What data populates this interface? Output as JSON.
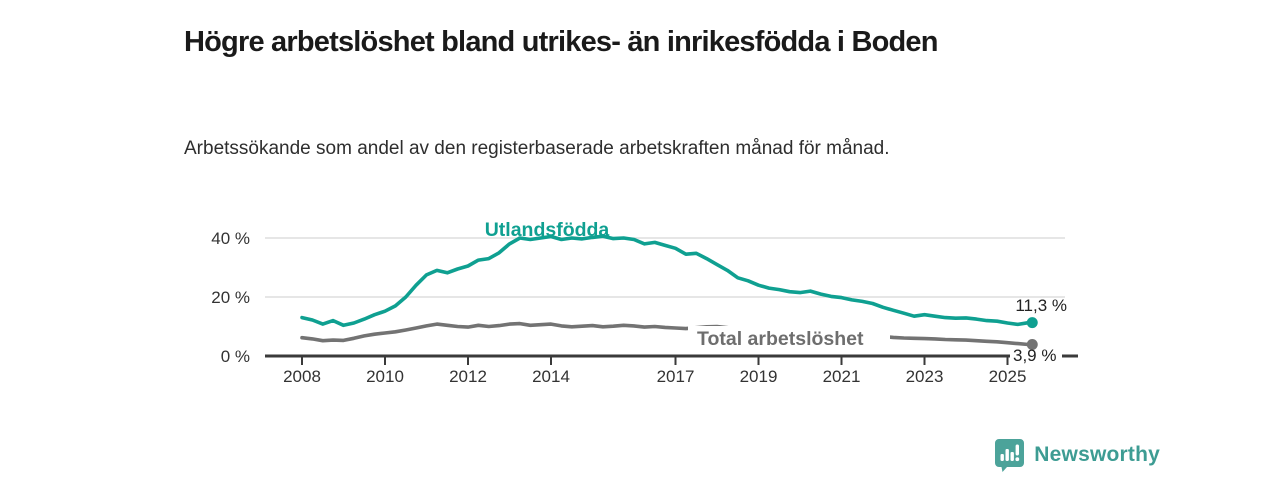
{
  "header": {
    "title": "Högre arbetslöshet bland utrikes- än inrikesfödda i Boden",
    "subtitle": "Arbetssökande som andel av den registerbaserade arbetskraften månad för månad."
  },
  "chart_data": {
    "type": "line",
    "unit": "%",
    "grid": "horizontal-only",
    "ylim": [
      0,
      44
    ],
    "xlim": [
      2007.2,
      2026.2
    ],
    "yticks": [
      {
        "value": 0,
        "label": "0 %"
      },
      {
        "value": 20,
        "label": "20 %"
      },
      {
        "value": 40,
        "label": "40 %"
      }
    ],
    "xticks": [
      {
        "value": 2008,
        "label": "2008"
      },
      {
        "value": 2010,
        "label": "2010"
      },
      {
        "value": 2012,
        "label": "2012"
      },
      {
        "value": 2014,
        "label": "2014"
      },
      {
        "value": 2017,
        "label": "2017"
      },
      {
        "value": 2019,
        "label": "2019"
      },
      {
        "value": 2021,
        "label": "2021"
      },
      {
        "value": 2023,
        "label": "2023"
      },
      {
        "value": 2025,
        "label": "2025"
      }
    ],
    "x": [
      2008.0,
      2008.25,
      2008.5,
      2008.75,
      2009.0,
      2009.25,
      2009.5,
      2009.75,
      2010.0,
      2010.25,
      2010.5,
      2010.75,
      2011.0,
      2011.25,
      2011.5,
      2011.75,
      2012.0,
      2012.25,
      2012.5,
      2012.75,
      2013.0,
      2013.25,
      2013.5,
      2013.75,
      2014.0,
      2014.25,
      2014.5,
      2014.75,
      2015.0,
      2015.25,
      2015.5,
      2015.75,
      2016.0,
      2016.25,
      2016.5,
      2016.75,
      2017.0,
      2017.25,
      2017.5,
      2017.75,
      2018.0,
      2018.25,
      2018.5,
      2018.75,
      2019.0,
      2019.25,
      2019.5,
      2019.75,
      2020.0,
      2020.25,
      2020.5,
      2020.75,
      2021.0,
      2021.25,
      2021.5,
      2021.75,
      2022.0,
      2022.25,
      2022.5,
      2022.75,
      2023.0,
      2023.25,
      2023.5,
      2023.75,
      2024.0,
      2024.25,
      2024.5,
      2024.75,
      2025.0,
      2025.25,
      2025.5
    ],
    "series": [
      {
        "name": "Utlandsfödda",
        "slug": "utlandsfodda",
        "color": "#0FA091",
        "end_label": "11,3 %",
        "end_value": 11.3,
        "values": [
          13.0,
          12.2,
          10.8,
          12.0,
          10.4,
          11.2,
          12.5,
          14.0,
          15.2,
          17.0,
          20.0,
          24.0,
          27.5,
          29.0,
          28.2,
          29.5,
          30.5,
          32.5,
          33.0,
          35.0,
          38.0,
          40.0,
          39.5,
          40.0,
          40.5,
          39.5,
          40.0,
          39.7,
          40.2,
          40.6,
          39.8,
          40.0,
          39.5,
          38.0,
          38.5,
          37.5,
          36.5,
          34.5,
          34.8,
          33.0,
          31.0,
          29.0,
          26.5,
          25.5,
          24.0,
          23.0,
          22.5,
          21.8,
          21.5,
          22.0,
          21.0,
          20.2,
          19.8,
          19.0,
          18.5,
          17.8,
          16.5,
          15.5,
          14.5,
          13.5,
          14.0,
          13.5,
          13.0,
          12.8,
          12.9,
          12.5,
          12.0,
          11.8,
          11.2,
          10.7,
          11.3
        ]
      },
      {
        "name": "Total arbetslöshet",
        "slug": "total-arbetsloshet",
        "color": "#737373",
        "label_color": "#6E6E6E",
        "end_label": "3,9 %",
        "end_value": 3.9,
        "values": [
          6.2,
          5.8,
          5.2,
          5.4,
          5.3,
          6.0,
          6.8,
          7.4,
          7.8,
          8.2,
          8.8,
          9.5,
          10.2,
          10.8,
          10.4,
          10.0,
          9.8,
          10.4,
          10.0,
          10.3,
          10.8,
          11.0,
          10.4,
          10.6,
          10.8,
          10.2,
          9.9,
          10.1,
          10.3,
          9.9,
          10.1,
          10.4,
          10.2,
          9.8,
          10.0,
          9.7,
          9.5,
          9.3,
          9.6,
          9.9,
          10.0,
          9.6,
          9.2,
          9.0,
          9.2,
          8.9,
          8.7,
          8.5,
          8.6,
          8.8,
          8.5,
          8.2,
          7.9,
          7.6,
          7.2,
          6.9,
          6.6,
          6.3,
          6.1,
          6.0,
          5.9,
          5.8,
          5.6,
          5.5,
          5.4,
          5.2,
          5.0,
          4.8,
          4.5,
          4.2,
          3.9
        ]
      }
    ],
    "colors": {
      "grid": "#D8D8D8",
      "axis": "#3A3A3A",
      "tick_label": "#333333",
      "annotation_text": "#222222"
    }
  },
  "footer": {
    "brand_name": "Newsworthy",
    "logo_icon": "bar-chart-speech-bubble-icon",
    "brand_text_color": "#3D9C93",
    "logo_fill": "#4CA39A"
  }
}
